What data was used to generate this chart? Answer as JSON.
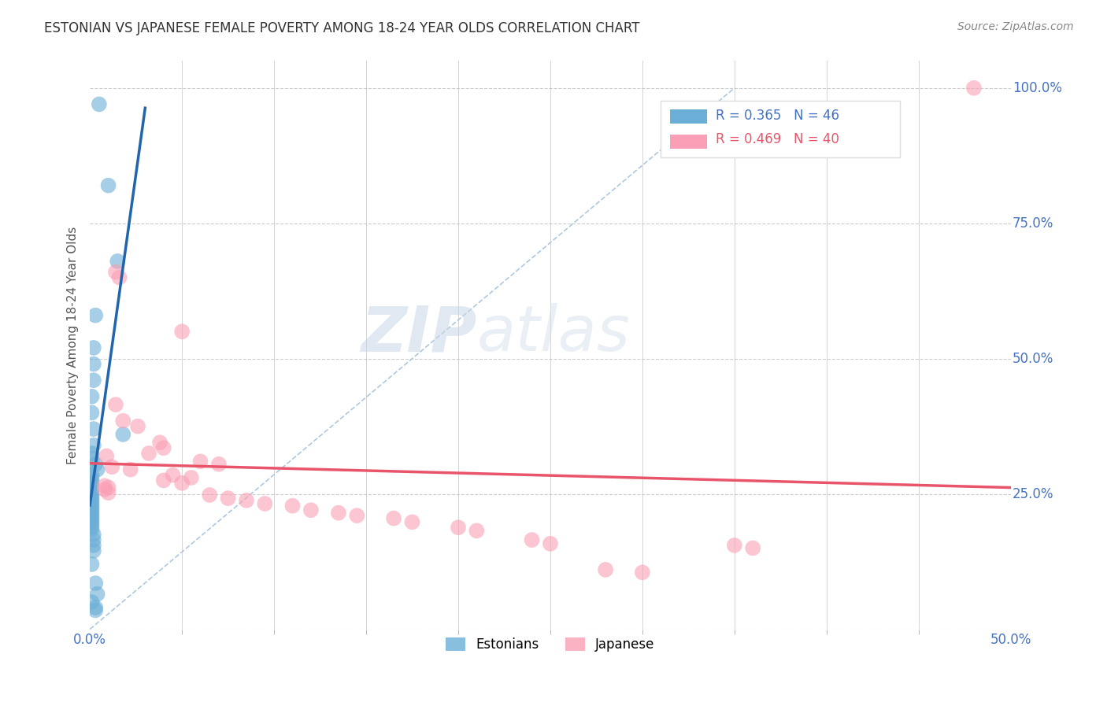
{
  "title": "ESTONIAN VS JAPANESE FEMALE POVERTY AMONG 18-24 YEAR OLDS CORRELATION CHART",
  "source": "Source: ZipAtlas.com",
  "ylabel": "Female Poverty Among 18-24 Year Olds",
  "xlabel": "",
  "xlim": [
    0.0,
    0.5
  ],
  "ylim": [
    0.0,
    1.05
  ],
  "xtick_positions": [
    0.0,
    0.5
  ],
  "xticklabels": [
    "0.0%",
    "50.0%"
  ],
  "yticks": [
    0.0,
    0.25,
    0.5,
    0.75,
    1.0
  ],
  "yticklabels": [
    "",
    "25.0%",
    "50.0%",
    "75.0%",
    "100.0%"
  ],
  "estonian_scatter": [
    [
      0.005,
      0.97
    ],
    [
      0.01,
      0.82
    ],
    [
      0.015,
      0.68
    ],
    [
      0.003,
      0.58
    ],
    [
      0.002,
      0.52
    ],
    [
      0.002,
      0.49
    ],
    [
      0.002,
      0.46
    ],
    [
      0.001,
      0.43
    ],
    [
      0.001,
      0.4
    ],
    [
      0.002,
      0.37
    ],
    [
      0.002,
      0.34
    ],
    [
      0.001,
      0.325
    ],
    [
      0.001,
      0.315
    ],
    [
      0.003,
      0.305
    ],
    [
      0.004,
      0.295
    ],
    [
      0.001,
      0.285
    ],
    [
      0.001,
      0.278
    ],
    [
      0.001,
      0.272
    ],
    [
      0.001,
      0.266
    ],
    [
      0.001,
      0.26
    ],
    [
      0.001,
      0.255
    ],
    [
      0.001,
      0.25
    ],
    [
      0.001,
      0.245
    ],
    [
      0.001,
      0.24
    ],
    [
      0.001,
      0.235
    ],
    [
      0.001,
      0.23
    ],
    [
      0.001,
      0.225
    ],
    [
      0.001,
      0.22
    ],
    [
      0.001,
      0.215
    ],
    [
      0.001,
      0.21
    ],
    [
      0.001,
      0.205
    ],
    [
      0.001,
      0.2
    ],
    [
      0.001,
      0.195
    ],
    [
      0.001,
      0.19
    ],
    [
      0.001,
      0.185
    ],
    [
      0.002,
      0.175
    ],
    [
      0.002,
      0.165
    ],
    [
      0.002,
      0.155
    ],
    [
      0.002,
      0.145
    ],
    [
      0.001,
      0.12
    ],
    [
      0.003,
      0.085
    ],
    [
      0.004,
      0.065
    ],
    [
      0.001,
      0.05
    ],
    [
      0.003,
      0.04
    ],
    [
      0.003,
      0.035
    ],
    [
      0.018,
      0.36
    ]
  ],
  "japanese_scatter": [
    [
      0.48,
      1.0
    ],
    [
      0.014,
      0.66
    ],
    [
      0.016,
      0.65
    ],
    [
      0.05,
      0.55
    ],
    [
      0.014,
      0.415
    ],
    [
      0.018,
      0.385
    ],
    [
      0.026,
      0.375
    ],
    [
      0.038,
      0.345
    ],
    [
      0.04,
      0.335
    ],
    [
      0.032,
      0.325
    ],
    [
      0.009,
      0.32
    ],
    [
      0.06,
      0.31
    ],
    [
      0.07,
      0.305
    ],
    [
      0.012,
      0.3
    ],
    [
      0.022,
      0.295
    ],
    [
      0.045,
      0.285
    ],
    [
      0.055,
      0.28
    ],
    [
      0.04,
      0.275
    ],
    [
      0.05,
      0.27
    ],
    [
      0.008,
      0.265
    ],
    [
      0.01,
      0.262
    ],
    [
      0.008,
      0.258
    ],
    [
      0.01,
      0.252
    ],
    [
      0.065,
      0.248
    ],
    [
      0.075,
      0.242
    ],
    [
      0.085,
      0.238
    ],
    [
      0.095,
      0.232
    ],
    [
      0.11,
      0.228
    ],
    [
      0.12,
      0.22
    ],
    [
      0.135,
      0.215
    ],
    [
      0.145,
      0.21
    ],
    [
      0.165,
      0.205
    ],
    [
      0.175,
      0.198
    ],
    [
      0.2,
      0.188
    ],
    [
      0.21,
      0.182
    ],
    [
      0.24,
      0.165
    ],
    [
      0.25,
      0.158
    ],
    [
      0.28,
      0.11
    ],
    [
      0.3,
      0.105
    ],
    [
      0.35,
      0.155
    ],
    [
      0.36,
      0.15
    ]
  ],
  "estonian_line_color": "#2166ac",
  "japanese_line_color": "#e8556a",
  "dashed_line_color": "#aec8e0",
  "watermark_zip": "ZIP",
  "watermark_atlas": "atlas",
  "background_color": "#ffffff",
  "grid_color": "#cccccc",
  "grid_minor_positions": [
    0.05,
    0.1,
    0.15,
    0.2,
    0.25,
    0.3,
    0.35,
    0.4,
    0.45
  ]
}
